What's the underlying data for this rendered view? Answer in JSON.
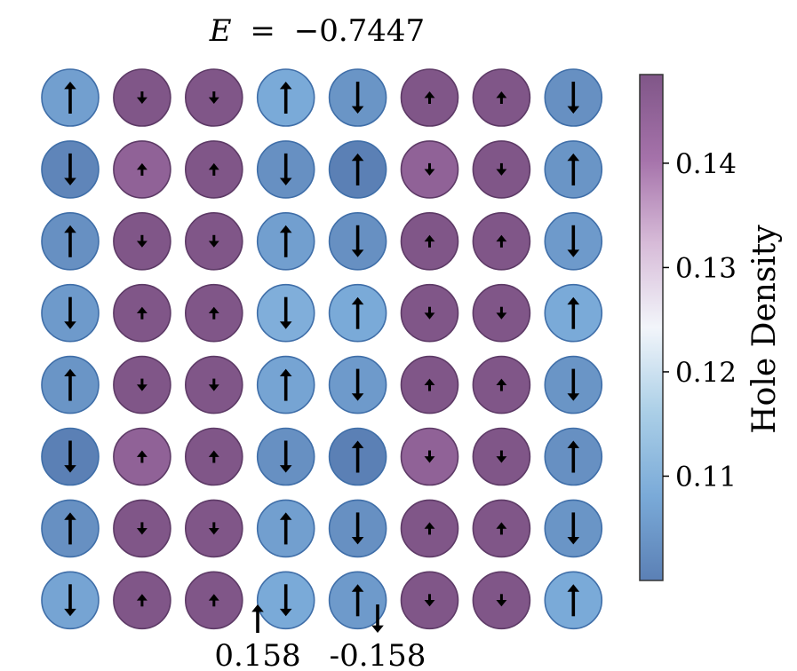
{
  "chart_data": {
    "type": "heatmap",
    "title": {
      "symbol": "E",
      "equals": "=",
      "value": "−0.7447"
    },
    "grid": {
      "rows": 8,
      "cols": 8
    },
    "hole_density": [
      [
        0.106,
        0.149,
        0.149,
        0.108,
        0.104,
        0.149,
        0.149,
        0.103
      ],
      [
        0.101,
        0.145,
        0.149,
        0.103,
        0.1,
        0.145,
        0.149,
        0.104
      ],
      [
        0.103,
        0.149,
        0.149,
        0.106,
        0.103,
        0.149,
        0.149,
        0.105
      ],
      [
        0.105,
        0.149,
        0.149,
        0.109,
        0.108,
        0.149,
        0.149,
        0.108
      ],
      [
        0.104,
        0.149,
        0.149,
        0.107,
        0.105,
        0.149,
        0.149,
        0.104
      ],
      [
        0.098,
        0.145,
        0.149,
        0.103,
        0.1,
        0.145,
        0.149,
        0.103
      ],
      [
        0.103,
        0.149,
        0.149,
        0.106,
        0.103,
        0.149,
        0.149,
        0.104
      ],
      [
        0.107,
        0.149,
        0.149,
        0.108,
        0.105,
        0.149,
        0.149,
        0.108
      ]
    ],
    "spin": [
      [
        0.158,
        -0.04,
        -0.04,
        0.158,
        -0.158,
        0.04,
        0.04,
        -0.158
      ],
      [
        -0.158,
        0.04,
        0.04,
        -0.158,
        0.158,
        -0.04,
        -0.04,
        0.158
      ],
      [
        0.158,
        -0.04,
        -0.04,
        0.158,
        -0.158,
        0.04,
        0.04,
        -0.158
      ],
      [
        -0.158,
        0.04,
        0.04,
        -0.158,
        0.158,
        -0.04,
        -0.04,
        0.158
      ],
      [
        0.158,
        -0.04,
        -0.04,
        0.158,
        -0.158,
        0.04,
        0.04,
        -0.158
      ],
      [
        -0.158,
        0.04,
        0.04,
        -0.158,
        0.158,
        -0.04,
        -0.04,
        0.158
      ],
      [
        0.158,
        -0.04,
        -0.04,
        0.158,
        -0.158,
        0.04,
        0.04,
        -0.158
      ],
      [
        -0.158,
        0.04,
        0.04,
        -0.158,
        0.158,
        -0.04,
        -0.04,
        0.158
      ]
    ],
    "colorbar": {
      "label": "Hole Density",
      "range": [
        0.1,
        0.1485
      ],
      "ticks": [
        0.11,
        0.12,
        0.13,
        0.14
      ],
      "tick_labels": [
        "0.11",
        "0.12",
        "0.13",
        "0.14"
      ],
      "colormap": [
        "#5b80b5",
        "#7aaad8",
        "#abcfe7",
        "#f2f5fa",
        "#d7bbd8",
        "#a572aa",
        "#805688"
      ]
    },
    "spin_legend": [
      {
        "direction": "up",
        "label": "0.158"
      },
      {
        "direction": "down",
        "label": "-0.158"
      }
    ]
  }
}
